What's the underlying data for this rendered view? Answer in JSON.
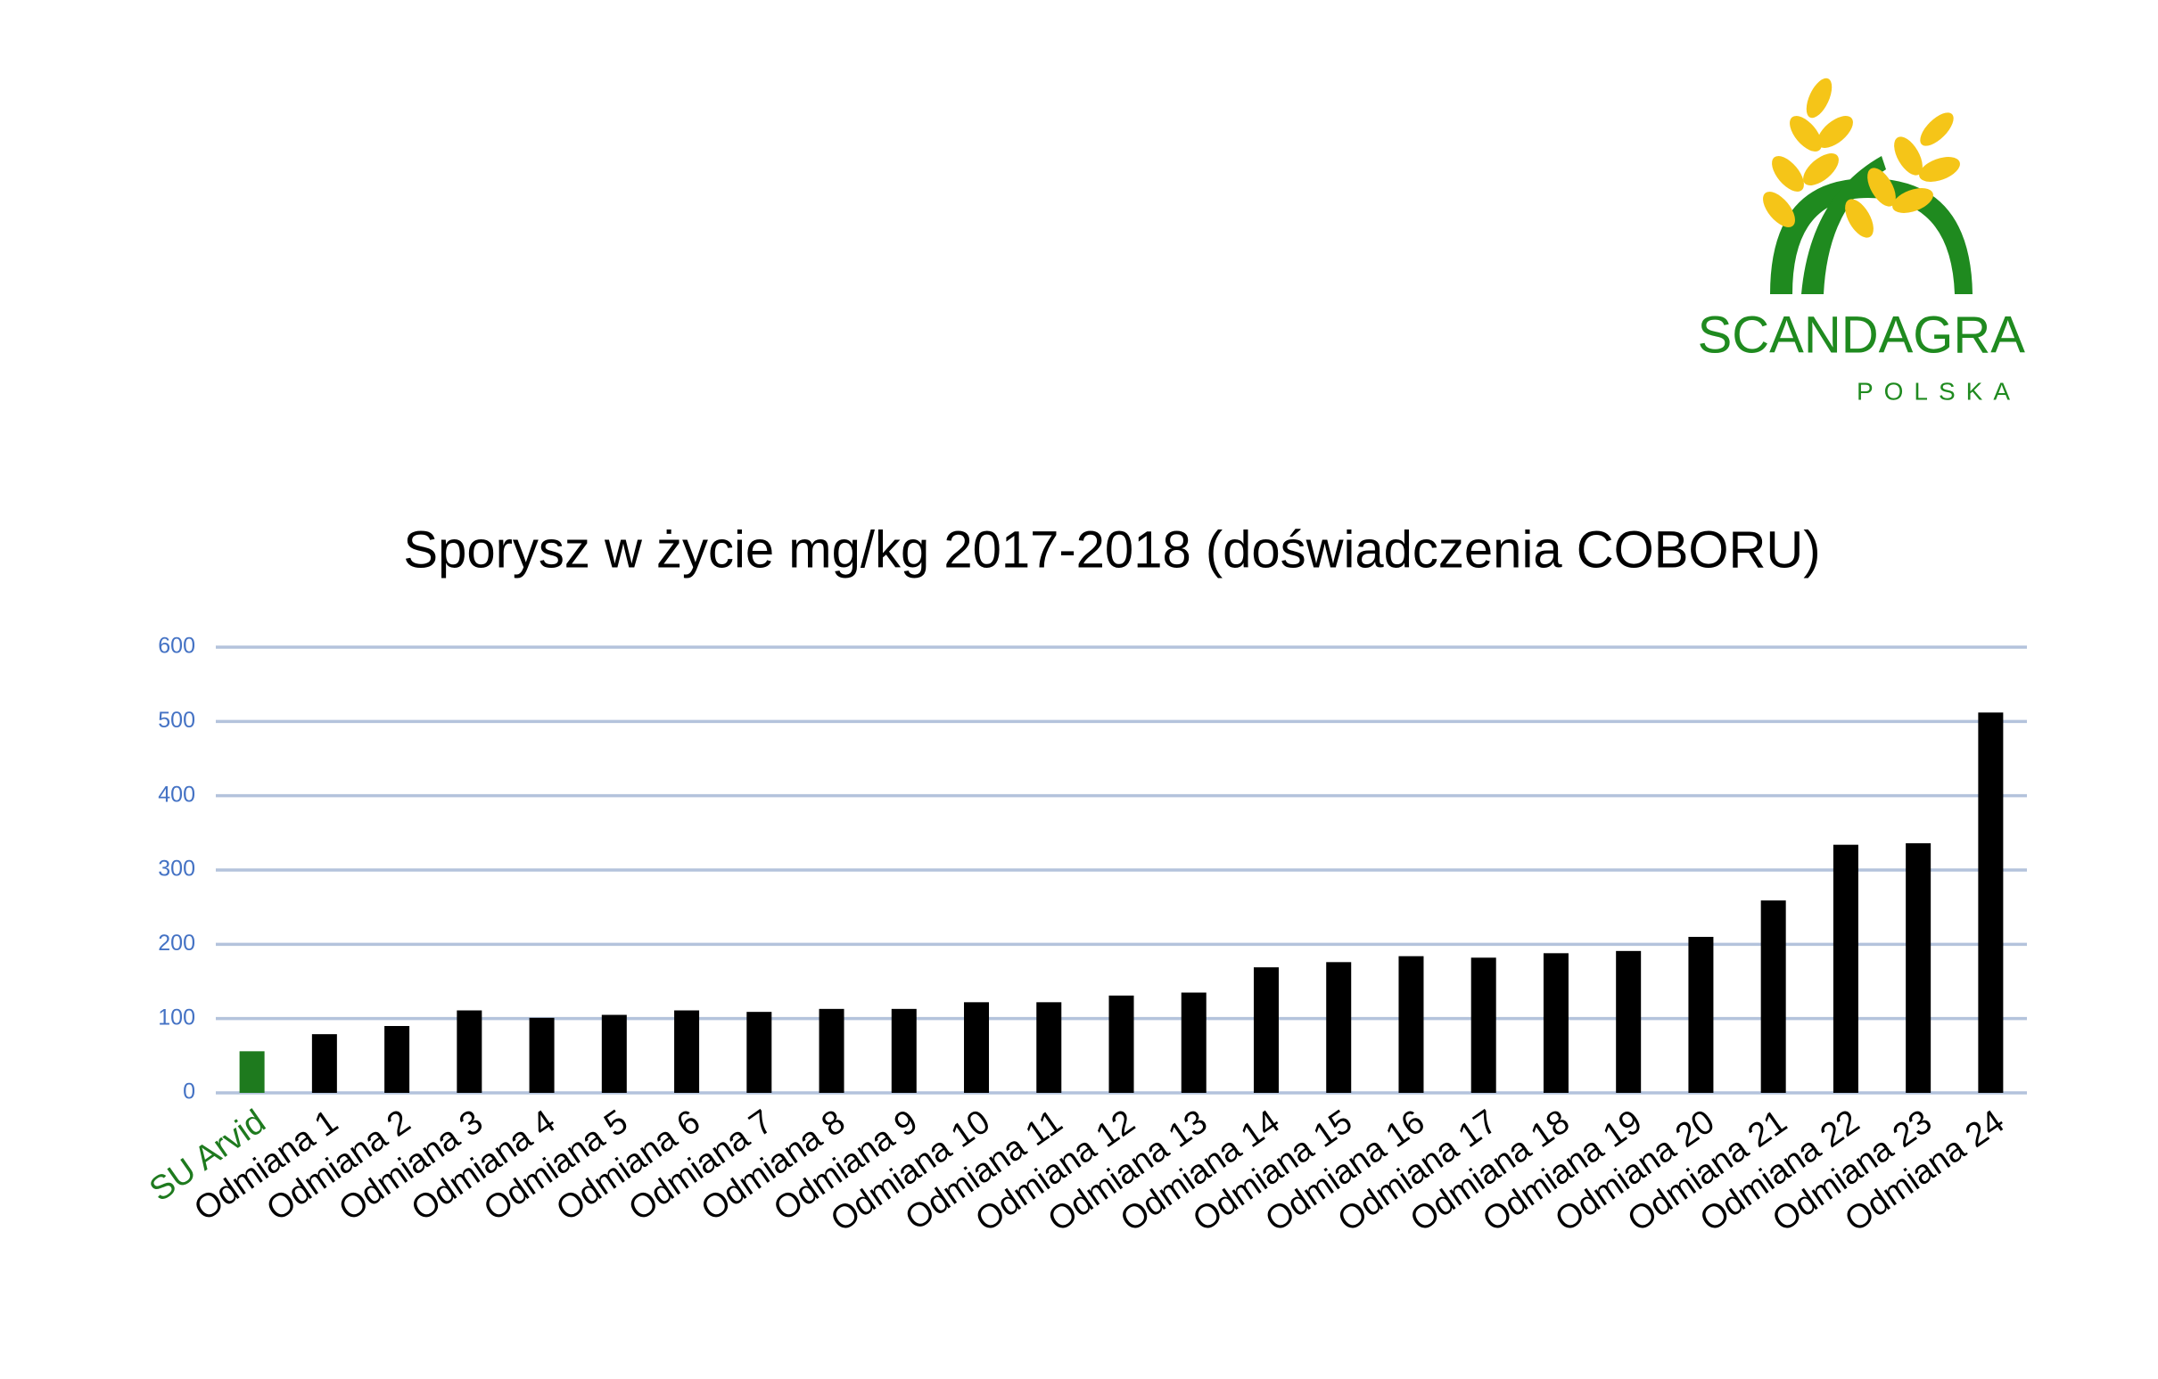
{
  "logo": {
    "name": "SCANDAGRA",
    "subtitle": "POLSKA"
  },
  "chart_data": {
    "type": "bar",
    "title": "Sporysz w życie mg/kg 2017-2018 (doświadczenia COBORU)",
    "categories": [
      "SU Arvid",
      "Odmiana 1",
      "Odmiana 2",
      "Odmiana 3",
      "Odmiana 4",
      "Odmiana 5",
      "Odmiana 6",
      "Odmiana 7",
      "Odmiana 8",
      "Odmiana 9",
      "Odmiana 10",
      "Odmiana 11",
      "Odmiana 12",
      "Odmiana 13",
      "Odmiana 14",
      "Odmiana 15",
      "Odmiana 16",
      "Odmiana 17",
      "Odmiana 18",
      "Odmiana 19",
      "Odmiana 20",
      "Odmiana 21",
      "Odmiana 22",
      "Odmiana 23",
      "Odmiana 24"
    ],
    "values": [
      56,
      79,
      90,
      111,
      101,
      105,
      111,
      109,
      113,
      113,
      122,
      122,
      131,
      135,
      169,
      176,
      184,
      182,
      188,
      191,
      210,
      259,
      334,
      336,
      512
    ],
    "colors": [
      "#1e7a1e",
      "#000000",
      "#000000",
      "#000000",
      "#000000",
      "#000000",
      "#000000",
      "#000000",
      "#000000",
      "#000000",
      "#000000",
      "#000000",
      "#000000",
      "#000000",
      "#000000",
      "#000000",
      "#000000",
      "#000000",
      "#000000",
      "#000000",
      "#000000",
      "#000000",
      "#000000",
      "#000000",
      "#000000"
    ],
    "ylim": [
      0,
      600
    ],
    "yticks": [
      0,
      100,
      200,
      300,
      400,
      500,
      600
    ],
    "grid": true,
    "grid_color": "#b4c3dc",
    "tick_color": "#4472c4"
  }
}
